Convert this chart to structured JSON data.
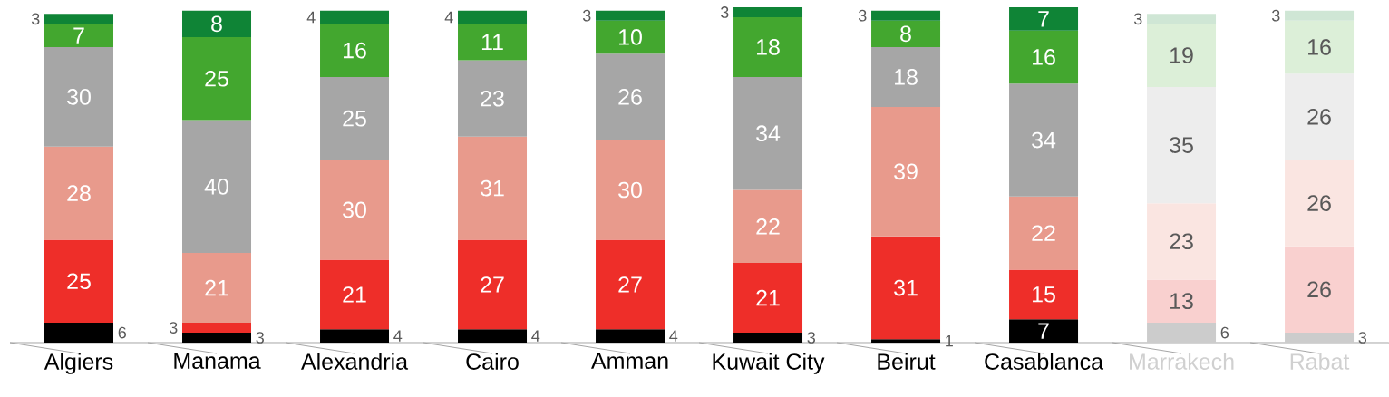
{
  "chart_data": {
    "type": "bar",
    "stacked": true,
    "data_labels": true,
    "categories": [
      "Algiers",
      "Manama",
      "Alexandria",
      "Cairo",
      "Amman",
      "Kuwait City",
      "Beirut",
      "Casablanca",
      "Marrakech",
      "Rabat"
    ],
    "series": [
      {
        "color": "#000000",
        "colors": [
          "#000000",
          "#000000",
          "#000000",
          "#000000",
          "#000000",
          "#000000",
          "#000000",
          "#000000",
          "#cccccc",
          "#cccccc"
        ],
        "values": [
          6,
          3,
          4,
          4,
          4,
          3,
          1,
          7,
          6,
          3
        ]
      },
      {
        "color": "#ee2e29",
        "colors": [
          "#ee2e29",
          "#ee2e29",
          "#ee2e29",
          "#ee2e29",
          "#ee2e29",
          "#ee2e29",
          "#ee2e29",
          "#ee2e29",
          "#f9d0cf",
          "#f9d0cf"
        ],
        "values": [
          25,
          3,
          21,
          27,
          27,
          21,
          31,
          15,
          13,
          26
        ]
      },
      {
        "color": "#e89a8c",
        "colors": [
          "#e89a8c",
          "#e89a8c",
          "#e89a8c",
          "#e89a8c",
          "#e89a8c",
          "#e89a8c",
          "#e89a8c",
          "#e89a8c",
          "#fae5e1",
          "#fae5e1"
        ],
        "values": [
          28,
          21,
          30,
          31,
          30,
          22,
          39,
          22,
          23,
          26
        ]
      },
      {
        "color": "#a6a6a6",
        "colors": [
          "#a6a6a6",
          "#a6a6a6",
          "#a6a6a6",
          "#a6a6a6",
          "#a6a6a6",
          "#a6a6a6",
          "#a6a6a6",
          "#a6a6a6",
          "#ededed",
          "#ededed"
        ],
        "values": [
          30,
          40,
          25,
          23,
          26,
          34,
          18,
          34,
          35,
          26
        ]
      },
      {
        "color": "#43a72f",
        "colors": [
          "#43a72f",
          "#43a72f",
          "#43a72f",
          "#43a72f",
          "#43a72f",
          "#43a72f",
          "#43a72f",
          "#43a72f",
          "#dcefd8",
          "#dcefd8"
        ],
        "values": [
          7,
          25,
          16,
          11,
          10,
          18,
          8,
          16,
          19,
          16
        ]
      },
      {
        "color": "#0f8436",
        "colors": [
          "#0f8436",
          "#0f8436",
          "#0f8436",
          "#0f8436",
          "#0f8436",
          "#0f8436",
          "#0f8436",
          "#0f8436",
          "#cfe6d5",
          "#cfe6d5"
        ],
        "values": [
          3,
          8,
          4,
          4,
          3,
          3,
          3,
          7,
          3,
          3
        ]
      }
    ]
  }
}
